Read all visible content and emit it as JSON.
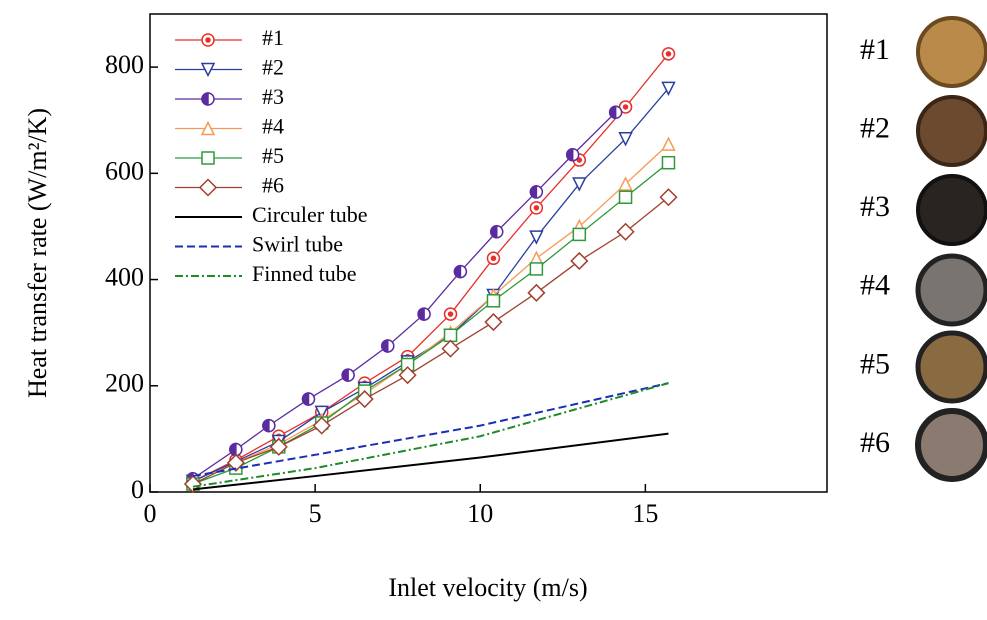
{
  "chart_data": {
    "type": "line",
    "x_label": "Inlet velocity (m/s)",
    "y_label": "Heat transfer rate (W/m²/K)",
    "xlim": [
      0,
      20.5
    ],
    "ylim": [
      0,
      900
    ],
    "xticks": [
      0,
      5,
      10,
      15
    ],
    "yticks": [
      0,
      200,
      400,
      600,
      800
    ],
    "legend": "upper-left",
    "series": [
      {
        "name": "#1",
        "color": "#e8302a",
        "marker": "circle-dot",
        "dash": "solid",
        "x": [
          1.3,
          2.6,
          3.9,
          5.2,
          6.5,
          7.8,
          9.1,
          10.4,
          11.7,
          13,
          14.4,
          15.7
        ],
        "values": [
          20,
          60,
          105,
          150,
          205,
          255,
          335,
          440,
          535,
          625,
          725,
          825
        ]
      },
      {
        "name": "#2",
        "color": "#2a3f9e",
        "marker": "triangle-down",
        "dash": "solid",
        "x": [
          1.3,
          3.9,
          5.2,
          6.5,
          7.8,
          9.1,
          10.4,
          11.7,
          13,
          14.4,
          15.7
        ],
        "values": [
          20,
          95,
          150,
          195,
          245,
          295,
          370,
          480,
          580,
          665,
          760
        ]
      },
      {
        "name": "#3",
        "color": "#5b2ca0",
        "marker": "half-circle",
        "dash": "solid",
        "x": [
          1.3,
          2.6,
          3.6,
          4.8,
          6,
          7.2,
          8.3,
          9.4,
          10.5,
          11.7,
          12.8,
          14.1
        ],
        "values": [
          25,
          80,
          125,
          175,
          220,
          275,
          335,
          415,
          490,
          565,
          635,
          715
        ]
      },
      {
        "name": "#4",
        "color": "#f79a55",
        "marker": "triangle-up",
        "dash": "solid",
        "x": [
          1.3,
          2.6,
          3.9,
          5.2,
          6.5,
          7.8,
          9.1,
          10.4,
          11.7,
          13,
          14.4,
          15.7
        ],
        "values": [
          15,
          55,
          90,
          135,
          185,
          240,
          300,
          370,
          440,
          500,
          580,
          655
        ]
      },
      {
        "name": "#5",
        "color": "#2e9a3a",
        "marker": "square",
        "dash": "solid",
        "x": [
          1.3,
          2.6,
          3.9,
          5.2,
          6.5,
          7.8,
          9.1,
          10.4,
          11.7,
          13,
          14.4,
          15.7
        ],
        "values": [
          15,
          45,
          85,
          130,
          190,
          240,
          295,
          360,
          420,
          485,
          555,
          620
        ]
      },
      {
        "name": "#6",
        "color": "#a0402e",
        "marker": "diamond",
        "dash": "solid",
        "x": [
          1.3,
          2.6,
          3.9,
          5.2,
          6.5,
          7.8,
          9.1,
          10.4,
          11.7,
          13,
          14.4,
          15.7
        ],
        "values": [
          15,
          55,
          85,
          125,
          175,
          220,
          270,
          320,
          375,
          435,
          490,
          555
        ]
      },
      {
        "name": "Circuler tube",
        "color": "#000000",
        "marker": "none",
        "dash": "solid",
        "x": [
          1.3,
          5,
          10,
          15.7
        ],
        "values": [
          5,
          30,
          65,
          110
        ]
      },
      {
        "name": "Swirl tube",
        "color": "#1a2fb5",
        "marker": "none",
        "dash": "dashed",
        "x": [
          1.3,
          5,
          10,
          15.7
        ],
        "values": [
          30,
          70,
          125,
          205
        ]
      },
      {
        "name": "Finned tube",
        "color": "#1f8a2a",
        "marker": "none",
        "dash": "dashdot",
        "x": [
          1.3,
          5,
          10,
          15.7
        ],
        "values": [
          10,
          45,
          105,
          205
        ]
      }
    ]
  },
  "sample_labels": [
    "#1",
    "#2",
    "#3",
    "#4",
    "#5",
    "#6"
  ]
}
